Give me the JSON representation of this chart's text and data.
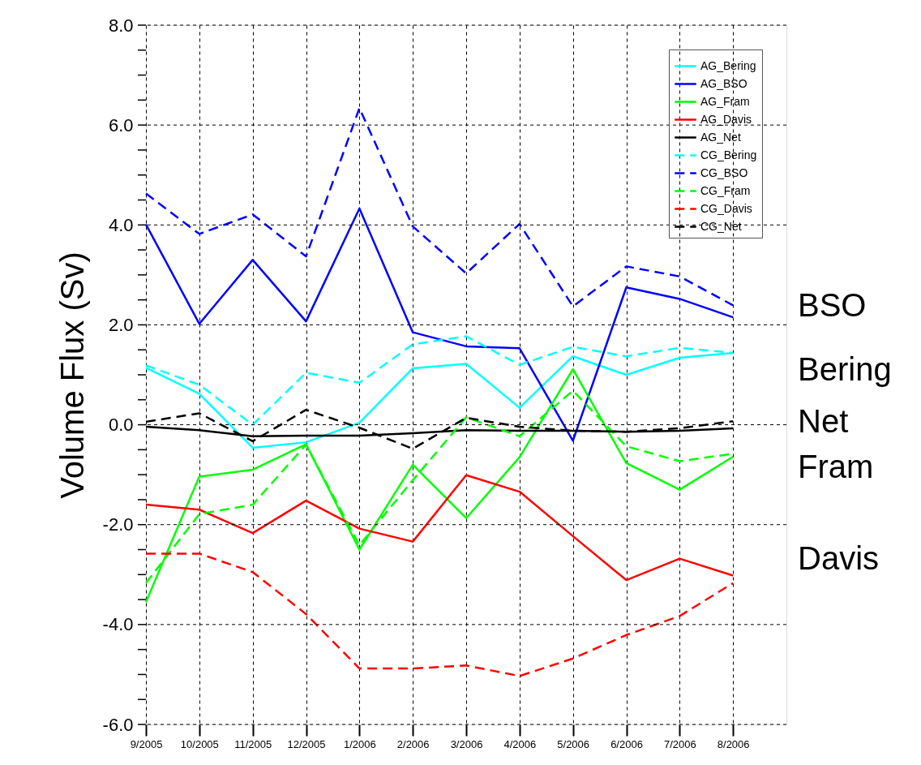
{
  "chart_data": {
    "type": "line",
    "ylabel": "Volume Flux (Sv)",
    "categories": [
      "9/2005",
      "10/2005",
      "11/2005",
      "12/2005",
      "1/2006",
      "2/2006",
      "3/2006",
      "4/2006",
      "5/2006",
      "6/2006",
      "7/2006",
      "8/2006"
    ],
    "series": [
      {
        "name": "AG_Bering",
        "color": "#00ffff",
        "line_style": "solid",
        "values": [
          1.14,
          0.62,
          -0.46,
          -0.35,
          0.04,
          1.13,
          1.22,
          0.34,
          1.37,
          1.0,
          1.34,
          1.44
        ]
      },
      {
        "name": "AG_BSO",
        "color": "#0000ff",
        "line_style": "solid",
        "values": [
          4.01,
          2.02,
          3.3,
          2.07,
          4.33,
          1.85,
          1.57,
          1.53,
          -0.32,
          2.75,
          2.52,
          2.15
        ]
      },
      {
        "name": "AG_Fram",
        "color": "#00ff00",
        "line_style": "solid",
        "values": [
          -3.55,
          -1.04,
          -0.9,
          -0.39,
          -2.5,
          -0.8,
          -1.87,
          -0.65,
          1.11,
          -0.77,
          -1.3,
          -0.64
        ]
      },
      {
        "name": "AG_Davis",
        "color": "#ff0000",
        "line_style": "solid",
        "values": [
          -1.6,
          -1.7,
          -2.17,
          -1.52,
          -2.08,
          -2.34,
          -1.01,
          -1.34,
          -2.23,
          -3.11,
          -2.68,
          -3.02
        ]
      },
      {
        "name": "AG_Net",
        "color": "#000000",
        "line_style": "solid",
        "values": [
          -0.04,
          -0.11,
          -0.23,
          -0.22,
          -0.22,
          -0.17,
          -0.11,
          -0.12,
          -0.12,
          -0.14,
          -0.12,
          -0.07
        ]
      },
      {
        "name": "CG_Bering",
        "color": "#00ffff",
        "line_style": "dashed",
        "values": [
          1.19,
          0.8,
          0.0,
          1.04,
          0.84,
          1.61,
          1.77,
          1.2,
          1.56,
          1.37,
          1.54,
          1.44
        ]
      },
      {
        "name": "CG_BSO",
        "color": "#0000ff",
        "line_style": "dashed",
        "values": [
          4.63,
          3.82,
          4.21,
          3.37,
          6.34,
          3.97,
          3.03,
          4.02,
          2.37,
          3.17,
          2.97,
          2.39
        ]
      },
      {
        "name": "CG_Fram",
        "color": "#00ff00",
        "line_style": "dashed",
        "values": [
          -3.17,
          -1.79,
          -1.6,
          -0.4,
          -2.41,
          -1.11,
          0.15,
          -0.23,
          0.68,
          -0.43,
          -0.73,
          -0.58
        ]
      },
      {
        "name": "CG_Davis",
        "color": "#ff0000",
        "line_style": "dashed",
        "values": [
          -2.58,
          -2.58,
          -2.95,
          -3.79,
          -4.88,
          -4.88,
          -4.82,
          -5.03,
          -4.68,
          -4.21,
          -3.83,
          -3.17
        ]
      },
      {
        "name": "CG_Net",
        "color": "#000000",
        "line_style": "dashed",
        "values": [
          0.06,
          0.23,
          -0.33,
          0.3,
          -0.06,
          -0.48,
          0.14,
          -0.04,
          -0.12,
          -0.14,
          -0.07,
          0.07
        ]
      }
    ],
    "ylim": [
      -6,
      8
    ],
    "yticks": [
      {
        "value": -6,
        "label": "-6.0"
      },
      {
        "value": -5.5,
        "label": null
      },
      {
        "value": -5,
        "label": null
      },
      {
        "value": -4.5,
        "label": null
      },
      {
        "value": -4,
        "label": "-4.0"
      },
      {
        "value": -3.5,
        "label": null
      },
      {
        "value": -3,
        "label": null
      },
      {
        "value": -2.5,
        "label": null
      },
      {
        "value": -2,
        "label": "-2.0"
      },
      {
        "value": -1.5,
        "label": null
      },
      {
        "value": -1,
        "label": null
      },
      {
        "value": -0.5,
        "label": null
      },
      {
        "value": 0,
        "label": "0.0"
      },
      {
        "value": 0.5,
        "label": null
      },
      {
        "value": 1,
        "label": null
      },
      {
        "value": 1.5,
        "label": null
      },
      {
        "value": 2,
        "label": "2.0"
      },
      {
        "value": 2.5,
        "label": null
      },
      {
        "value": 3,
        "label": null
      },
      {
        "value": 3.5,
        "label": null
      },
      {
        "value": 4,
        "label": "4.0"
      },
      {
        "value": 4.5,
        "label": null
      },
      {
        "value": 5,
        "label": null
      },
      {
        "value": 5.5,
        "label": null
      },
      {
        "value": 6,
        "label": "6.0"
      },
      {
        "value": 6.5,
        "label": null
      },
      {
        "value": 7,
        "label": null
      },
      {
        "value": 7.5,
        "label": null
      },
      {
        "value": 8,
        "label": "8.0"
      }
    ],
    "grid": true,
    "legend": "top right",
    "annotations": [
      "BSO",
      "Bering",
      "Net",
      "Fram",
      "Davis"
    ]
  }
}
